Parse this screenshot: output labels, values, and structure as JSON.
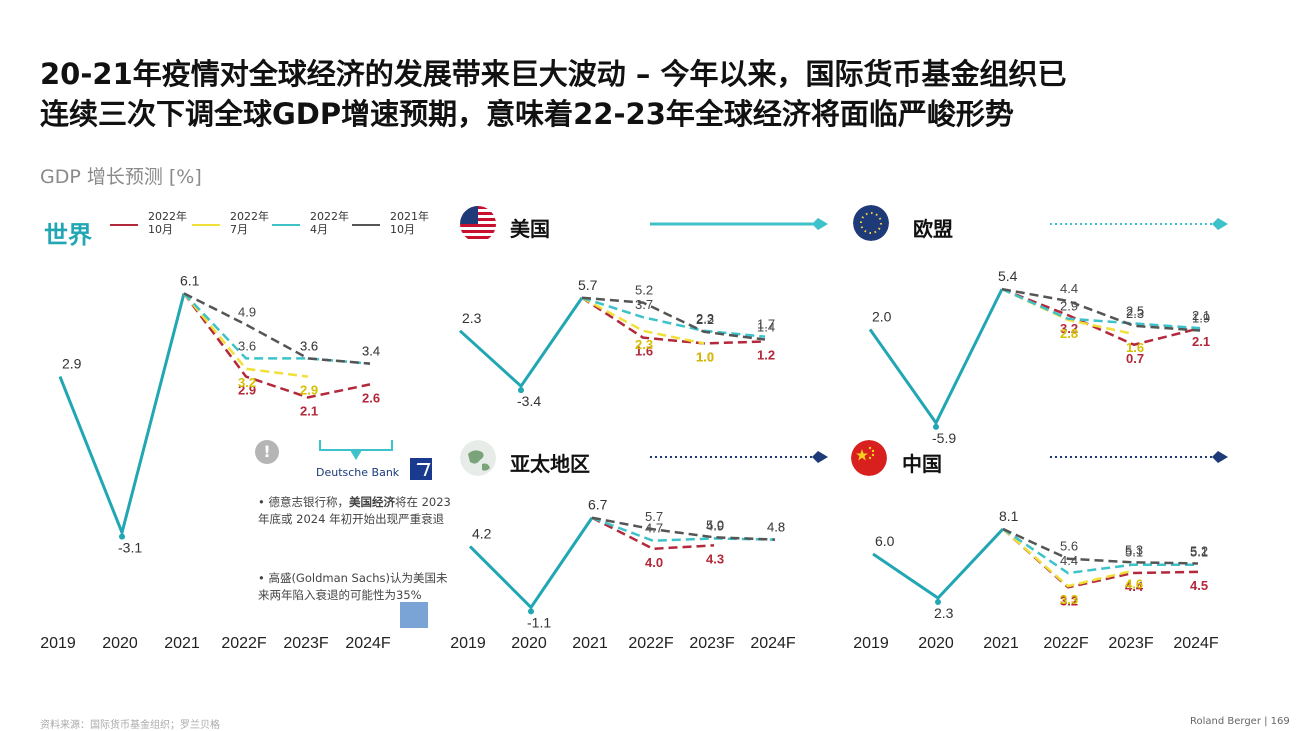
{
  "title_line1": "20-21年疫情对全球经济的发展带来巨大波动 – 今年以来，国际货币基金组织已",
  "title_line2": "连续三次下调全球GDP增速预期，意味着22-23年全球经济将面临严峻形势",
  "subtitle": "GDP 增长预测 [%]",
  "world_label": "世界",
  "legend": [
    {
      "line1": "2022年",
      "line2": "10月",
      "color": "#b3283a"
    },
    {
      "line1": "2022年",
      "line2": "7月",
      "color": "#f2e03a"
    },
    {
      "line1": "2022年",
      "line2": "4月",
      "color": "#3cc2c8"
    },
    {
      "line1": "2021年",
      "line2": "10月",
      "color": "#555555"
    }
  ],
  "panel_labels": {
    "us": "美国",
    "eu": "欧盟",
    "apac": "亚太地区",
    "china": "中国"
  },
  "note_icon": "!",
  "deutsche_bank": "Deutsche Bank",
  "note1_prefix": "• 德意志银行称，",
  "note1_bold": "美国经济",
  "note1_suffix": "将在 2023 年底或 2024 年初开始出现严重衰退",
  "note2": "• 高盛(Goldman Sachs)认为美国未来两年陷入衰退的可能性为35%",
  "footer_left": "资料来源：国际货币基金组织；罗兰贝格",
  "footer_right": "Roland Berger | 169",
  "colors": {
    "oct22": "#b3283a",
    "jul22": "#f2e03a",
    "apr22": "#3cc2c8",
    "oct21": "#555555",
    "history": "#21a6b3"
  },
  "chart_data": [
    {
      "type": "line",
      "title": "世界",
      "categories": [
        "2019",
        "2020",
        "2021",
        "2022F",
        "2023F",
        "2024F"
      ],
      "ylim": [
        -5,
        7
      ],
      "history": [
        2.9,
        -3.1,
        6.1
      ],
      "series": [
        {
          "name": "2022年10月",
          "values": [
            null,
            null,
            6.1,
            2.9,
            2.1,
            2.6
          ]
        },
        {
          "name": "2022年7月",
          "values": [
            null,
            null,
            6.1,
            3.2,
            2.9,
            null
          ]
        },
        {
          "name": "2022年4月",
          "values": [
            null,
            null,
            6.1,
            3.6,
            3.6,
            3.4
          ]
        },
        {
          "name": "2021年10月",
          "values": [
            null,
            null,
            6.1,
            4.9,
            3.6,
            3.4
          ]
        }
      ]
    },
    {
      "type": "line",
      "title": "美国",
      "categories": [
        "2019",
        "2020",
        "2021",
        "2022F",
        "2023F",
        "2024F"
      ],
      "ylim": [
        -4,
        6.5
      ],
      "history": [
        2.3,
        -3.4,
        5.7
      ],
      "series": [
        {
          "name": "2022年10月",
          "values": [
            null,
            null,
            5.7,
            1.6,
            1.0,
            1.2
          ]
        },
        {
          "name": "2022年7月",
          "values": [
            null,
            null,
            5.7,
            2.3,
            1.0,
            null
          ]
        },
        {
          "name": "2022年4月",
          "values": [
            null,
            null,
            5.7,
            3.7,
            2.3,
            1.7
          ]
        },
        {
          "name": "2021年10月",
          "values": [
            null,
            null,
            5.7,
            5.2,
            2.2,
            1.4
          ]
        }
      ]
    },
    {
      "type": "line",
      "title": "欧盟",
      "categories": [
        "2019",
        "2020",
        "2021",
        "2022F",
        "2023F",
        "2024F"
      ],
      "ylim": [
        -6.5,
        6
      ],
      "history": [
        2.0,
        -5.9,
        5.4
      ],
      "series": [
        {
          "name": "2022年10月",
          "values": [
            null,
            null,
            5.4,
            3.2,
            0.7,
            2.1
          ]
        },
        {
          "name": "2022年7月",
          "values": [
            null,
            null,
            5.4,
            2.8,
            1.6,
            null
          ]
        },
        {
          "name": "2022年4月",
          "values": [
            null,
            null,
            5.4,
            2.9,
            2.5,
            2.1
          ]
        },
        {
          "name": "2021年10月",
          "values": [
            null,
            null,
            5.4,
            4.4,
            2.3,
            1.9
          ]
        }
      ]
    },
    {
      "type": "line",
      "title": "亚太地区",
      "categories": [
        "2019",
        "2020",
        "2021",
        "2022F",
        "2023F",
        "2024F"
      ],
      "ylim": [
        -1.5,
        7.2
      ],
      "history": [
        4.2,
        -1.1,
        6.7
      ],
      "series": [
        {
          "name": "2022年10月",
          "values": [
            null,
            null,
            6.7,
            4.0,
            4.3,
            null
          ]
        },
        {
          "name": "2022年4月",
          "values": [
            null,
            null,
            6.7,
            4.7,
            4.9,
            4.8
          ]
        },
        {
          "name": "2021年10月",
          "values": [
            null,
            null,
            6.7,
            5.7,
            5.0,
            4.8
          ]
        }
      ]
    },
    {
      "type": "line",
      "title": "中国",
      "categories": [
        "2019",
        "2020",
        "2021",
        "2022F",
        "2023F",
        "2024F"
      ],
      "ylim": [
        1.8,
        8.6
      ],
      "history": [
        6.0,
        2.3,
        8.1
      ],
      "series": [
        {
          "name": "2022年10月",
          "values": [
            null,
            null,
            8.1,
            3.2,
            4.4,
            4.5
          ]
        },
        {
          "name": "2022年7月",
          "values": [
            null,
            null,
            8.1,
            3.3,
            4.6,
            null
          ]
        },
        {
          "name": "2022年4月",
          "values": [
            null,
            null,
            8.1,
            4.4,
            5.1,
            5.1
          ]
        },
        {
          "name": "2021年10月",
          "values": [
            null,
            null,
            8.1,
            5.6,
            5.3,
            5.2
          ]
        }
      ]
    }
  ]
}
